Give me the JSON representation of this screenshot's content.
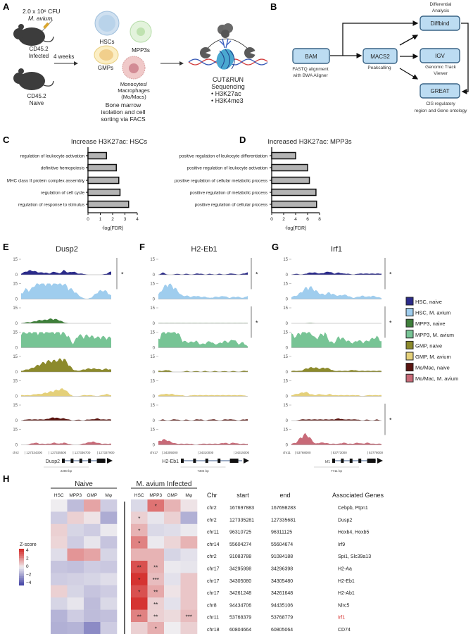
{
  "panel_labels": {
    "a": "A",
    "b": "B",
    "c": "C",
    "d": "D",
    "e": "E",
    "f": "F",
    "g": "G",
    "h": "H"
  },
  "panel_a": {
    "dose": "2.0 x 10⁶ CFU",
    "organism": "M. avium",
    "mouse_infected": [
      "CD45.2",
      "Infected"
    ],
    "mouse_naive": [
      "CD45.2",
      "Naive"
    ],
    "duration": "4 weeks",
    "cells": {
      "hsc": "HSCs",
      "mpp3": "MPP3s",
      "gmp": "GMPs",
      "momac": [
        "Monocytes/",
        "Macrophages",
        "(Mo/Macs)"
      ]
    },
    "isolation": [
      "Bone marrow",
      "isolation and cell",
      "sorting via FACS"
    ],
    "assay": [
      "CUT&RUN",
      "Sequencing",
      "•  H3K27ac",
      "•  H3K4me3"
    ],
    "colors": {
      "mouse": "#3c3c3c",
      "hsc": "#b9d3ea",
      "mpp3": "#cfe8c4",
      "gmp": "#f4dc9a",
      "momac": "#e8b4b4",
      "dna_red": "#d23a3a",
      "dna_blue": "#3457b5",
      "nucleosome": "#4aa8d0"
    }
  },
  "panel_b": {
    "nodes": {
      "bam": "BAM",
      "macs2": "MACS2",
      "diffbind": "Diffbind",
      "igv": "IGV",
      "great": "GREAT"
    },
    "captions": {
      "bam": [
        "FASTQ alignment",
        "with BWA Aligner"
      ],
      "macs2": [
        "Peakcalling"
      ],
      "diffbind": [
        "Differential",
        "Analysis"
      ],
      "igv": [
        "Genomic Track",
        "Viewer"
      ],
      "great": [
        "CIS regulatory",
        "region and Gene ontology"
      ]
    },
    "colors": {
      "box_fill": "#bcdcf2",
      "box_stroke": "#3a6486"
    }
  },
  "chart_data": [
    {
      "type": "bar",
      "orientation": "horizontal",
      "title": "Increase H3K27ac: HSCs",
      "categories": [
        "regulation of leukocyte activation",
        "definitive hemopoiesis",
        "MHC class II protein complex assembly",
        "regulation of cell cycle",
        "regulation of response to stimulus"
      ],
      "values": [
        1.5,
        2.3,
        2.5,
        2.6,
        3.3
      ],
      "xlabel": "-log(FDR)",
      "xlim": [
        0,
        4
      ],
      "xticks": [
        0,
        1,
        2,
        3,
        4
      ],
      "bar_color": "#b4b4b4"
    },
    {
      "type": "bar",
      "orientation": "horizontal",
      "title": "Increased H3K27ac: MPP3s",
      "categories": [
        "positive regulation of leukocyte differentiation",
        "positive regulation of leukocyte activation",
        "positive regulation of cellular metabolic process",
        "positive regulation of metabolic process",
        "positive regulation of cellular process"
      ],
      "values": [
        4.0,
        6.0,
        6.3,
        7.4,
        7.5
      ],
      "xlabel": "-log(FDR)",
      "xlim": [
        0,
        8
      ],
      "xticks": [
        0,
        2,
        4,
        6,
        8
      ],
      "bar_color": "#b4b4b4"
    },
    {
      "type": "area",
      "ylim": [
        0,
        15
      ],
      "yticks": [
        "15",
        "0"
      ],
      "legend_placement": "right",
      "tracks": [
        {
          "name": "HSC, naive",
          "color": "#2b2b8a"
        },
        {
          "name": "HSC, M. avium",
          "color": "#9fcdee"
        },
        {
          "name": "MPP3, naive",
          "color": "#3f7f3b"
        },
        {
          "name": "MPP3, M. avium",
          "color": "#77c495"
        },
        {
          "name": "GMP, naive",
          "color": "#8c8a2c"
        },
        {
          "name": "GMP, M. avium",
          "color": "#e4d07a"
        },
        {
          "name": "Mo/Mac, naive",
          "color": "#5a1410"
        },
        {
          "name": "Mo/Mac, M. avium",
          "color": "#c86a78"
        }
      ],
      "genes": [
        {
          "title": "Dusp2",
          "chr": "chr2",
          "gene_label": "Dusp2",
          "scale": "2280 bp",
          "coords": [
            "| 127334300",
            "| 127335500",
            "| 127336700",
            "| 127337900"
          ],
          "significant": [
            [
              0,
              1
            ]
          ],
          "sig_mark": "*",
          "signal": [
            [
              1,
              3,
              4,
              3,
              2,
              2,
              1,
              3,
              1,
              4,
              2,
              3,
              1,
              1,
              0,
              0,
              0,
              0,
              1,
              3
            ],
            [
              5,
              9,
              8,
              14,
              15,
              15,
              15,
              15,
              15,
              14,
              10,
              8,
              4,
              1,
              0,
              2,
              6,
              8,
              7,
              3
            ],
            [
              0,
              1,
              1,
              2,
              3,
              3,
              4,
              4,
              3,
              1,
              0,
              0,
              0,
              0,
              0,
              0,
              0,
              0,
              0,
              0
            ],
            [
              14,
              14,
              15,
              15,
              15,
              15,
              15,
              15,
              15,
              14,
              10,
              3,
              12,
              10,
              11,
              10,
              9,
              10,
              9,
              9
            ],
            [
              1,
              2,
              3,
              5,
              7,
              9,
              10,
              10,
              11,
              12,
              7,
              2,
              1,
              2,
              3,
              3,
              3,
              2,
              3,
              2
            ],
            [
              1,
              1,
              1,
              2,
              2,
              3,
              4,
              5,
              6,
              7,
              3,
              0,
              0,
              1,
              1,
              1,
              0,
              1,
              2,
              1
            ],
            [
              0,
              1,
              1,
              1,
              1,
              1,
              2,
              3,
              2,
              2,
              1,
              0,
              1,
              0,
              1,
              1,
              2,
              1,
              1,
              1
            ],
            [
              0,
              0,
              1,
              2,
              1,
              1,
              1,
              2,
              1,
              2,
              1,
              0,
              0,
              1,
              2,
              3,
              2,
              1,
              1,
              1
            ]
          ]
        },
        {
          "title": "H2-Eb1",
          "chr": "chr17",
          "gene_label": "H2-Eb1",
          "scale": "7304 bp",
          "coords": [
            "| 34305000",
            "| 34310000",
            "| 34315000"
          ],
          "significant": [
            [
              0,
              1
            ],
            [
              2,
              3
            ]
          ],
          "sig_mark": "*",
          "signal": [
            [
              0,
              2,
              0,
              0,
              1,
              0,
              1,
              0,
              1,
              1,
              0,
              1,
              0,
              1,
              0,
              1,
              1,
              0,
              1,
              2
            ],
            [
              4,
              10,
              14,
              12,
              8,
              3,
              3,
              2,
              3,
              2,
              2,
              1,
              2,
              2,
              3,
              1,
              2,
              2,
              1,
              3
            ],
            [
              0.3,
              0.3,
              0.3,
              0.3,
              0.3,
              0.3,
              0.3,
              0.3,
              0.3,
              0.3,
              0.3,
              0.3,
              0.3,
              0.3,
              0.3,
              0.3,
              0.3,
              0.3,
              0.3,
              0.3
            ],
            [
              8,
              15,
              15,
              15,
              15,
              7,
              5,
              5,
              6,
              3,
              4,
              6,
              3,
              4,
              6,
              5,
              8,
              3,
              5,
              1
            ],
            [
              1,
              1,
              2,
              0,
              0,
              0,
              1,
              0,
              1,
              0,
              1,
              0,
              1,
              0,
              1,
              0,
              1,
              0,
              1,
              1
            ],
            [
              1,
              2,
              2,
              2,
              1,
              1,
              0,
              1,
              1,
              1,
              1,
              1,
              1,
              1,
              1,
              1,
              1,
              1,
              1,
              0
            ],
            [
              0,
              1,
              0,
              1,
              1,
              0,
              1,
              0,
              1,
              1,
              0,
              1,
              1,
              0,
              1,
              1,
              1,
              0,
              1,
              1
            ],
            [
              3,
              5,
              4,
              2,
              1,
              1,
              1,
              1,
              0,
              1,
              1,
              1,
              1,
              1,
              2,
              1,
              2,
              1,
              1,
              1
            ]
          ]
        },
        {
          "title": "Irf1",
          "chr": "chr11",
          "gene_label": "Irf1",
          "scale": "7711 bp",
          "coords": [
            "| 53768000",
            "| 53773000",
            "| 53778000"
          ],
          "significant": [
            [
              0,
              1
            ],
            [
              2,
              3
            ],
            [
              6,
              7
            ]
          ],
          "sig_mark": "*",
          "signal": [
            [
              0,
              1,
              0,
              1,
              2,
              2,
              1,
              2,
              3,
              1,
              2,
              1,
              1,
              0,
              1,
              1,
              1,
              1,
              1,
              1
            ],
            [
              2,
              3,
              6,
              10,
              11,
              8,
              5,
              4,
              6,
              4,
              3,
              4,
              3,
              1,
              2,
              3,
              2,
              3,
              2,
              1
            ],
            [
              0,
              0,
              0,
              0,
              0.5,
              0,
              0,
              0,
              0,
              0,
              0,
              0,
              0,
              0,
              0,
              0,
              0,
              0,
              0,
              0
            ],
            [
              12,
              10,
              15,
              15,
              15,
              8,
              11,
              14,
              6,
              4,
              10,
              8,
              6,
              4,
              7,
              5,
              6,
              8,
              10,
              6
            ],
            [
              1,
              1,
              1,
              3,
              4,
              4,
              3,
              4,
              3,
              1,
              1,
              1,
              1,
              2,
              1,
              1,
              1,
              1,
              1,
              1
            ],
            [
              1,
              2,
              3,
              4,
              2,
              1,
              2,
              1,
              2,
              1,
              1,
              1,
              1,
              1,
              1,
              0,
              1,
              1,
              1,
              1
            ],
            [
              0,
              0,
              1,
              1,
              1,
              1,
              1,
              1,
              1,
              1,
              2,
              1,
              1,
              1,
              1,
              0,
              1,
              0,
              1,
              0
            ],
            [
              1,
              2,
              7,
              10,
              6,
              1,
              2,
              2,
              1,
              1,
              1,
              2,
              1,
              1,
              2,
              1,
              2,
              1,
              1,
              1
            ]
          ]
        }
      ]
    },
    {
      "type": "heatmap",
      "groups": [
        "Naive",
        "M. avium Infected"
      ],
      "columns": [
        "HSC",
        "MPP3",
        "GMP",
        "Mφ"
      ],
      "colorbar": {
        "label": "Z-score",
        "ticks": [
          "4",
          "2",
          "0",
          "−2",
          "−4"
        ],
        "range": [
          -4,
          4
        ],
        "low": "#4a4aa8",
        "mid": "#efedf0",
        "high": "#d42a28"
      },
      "naive": [
        [
          0,
          -1.2,
          1.5,
          -0.8
        ],
        [
          -0.8,
          0.6,
          0.2,
          -1.6
        ],
        [
          0.6,
          -0.6,
          -0.8,
          -0.1
        ],
        [
          0.5,
          -0.8,
          -0.2,
          -1.0
        ],
        [
          -0.4,
          1.8,
          1.5,
          -0.6
        ],
        [
          -1.0,
          -1.1,
          -0.8,
          -0.9
        ],
        [
          -0.8,
          -0.7,
          -0.6,
          -0.4
        ],
        [
          0.6,
          -0.6,
          -1.0,
          -0.8
        ],
        [
          -0.6,
          -0.2,
          -1.2,
          -0.5
        ],
        [
          -1.4,
          -0.8,
          -1.2,
          -1.1
        ],
        [
          -1.5,
          -1.4,
          -2.4,
          -0.8
        ]
      ],
      "infected": [
        [
          -0.5,
          2.5,
          1.2,
          0.2
        ],
        [
          0.6,
          -0.2,
          0.6,
          -1.5
        ],
        [
          1.2,
          -0.5,
          -0.4,
          -0.1
        ],
        [
          2.2,
          -0.1,
          0.5,
          1.2
        ],
        [
          1.2,
          1.2,
          -0.6,
          -0.3
        ],
        [
          3.2,
          1.2,
          -0.1,
          -0.2
        ],
        [
          3.8,
          1.0,
          -0.3,
          0.8
        ],
        [
          3.2,
          1.4,
          0.2,
          0.8
        ],
        [
          3.8,
          0.6,
          -0.3,
          0.8
        ],
        [
          2.2,
          0.6,
          0.4,
          1.0
        ],
        [
          0.6,
          1.3,
          0.0,
          0.6
        ]
      ],
      "infected_stars": [
        [
          "",
          "*",
          "",
          ""
        ],
        [
          "*",
          "",
          "",
          ""
        ],
        [
          "*",
          "",
          "",
          ""
        ],
        [
          "*",
          "",
          "",
          ""
        ],
        [
          "",
          "",
          "",
          ""
        ],
        [
          "**",
          "**",
          "",
          ""
        ],
        [
          "*",
          "***",
          "",
          ""
        ],
        [
          "*",
          "**",
          "",
          ""
        ],
        [
          "",
          "**",
          "",
          ""
        ],
        [
          "**",
          "**",
          "",
          "***"
        ],
        [
          "",
          "*",
          "",
          ""
        ]
      ]
    }
  ],
  "region_table": {
    "headers": [
      "Chr",
      "start",
      "end",
      "Associated Genes"
    ],
    "highlight_color": "#d42a28",
    "rows": [
      {
        "chr": "chr2",
        "start": "167697883",
        "end": "167698283",
        "genes": "Cebpb, Ptpn1"
      },
      {
        "chr": "chr2",
        "start": "127335281",
        "end": "127335681",
        "genes": "Dusp2"
      },
      {
        "chr": "chr11",
        "start": "96310725",
        "end": "96311125",
        "genes": "Hoxb4, Hoxb5"
      },
      {
        "chr": "chr14",
        "start": "55604274",
        "end": "55604674",
        "genes": "Irf9"
      },
      {
        "chr": "chr2",
        "start": "91083788",
        "end": "91084188",
        "genes": "Spi1, Slc39a13"
      },
      {
        "chr": "chr17",
        "start": "34295998",
        "end": "34296398",
        "genes": "H2-Aa"
      },
      {
        "chr": "chr17",
        "start": "34305080",
        "end": "34305480",
        "genes": "H2-Eb1"
      },
      {
        "chr": "chr17",
        "start": "34261248",
        "end": "34261648",
        "genes": "H2-Ab1"
      },
      {
        "chr": "chr8",
        "start": "94434706",
        "end": "94435106",
        "genes": "Nlrc5"
      },
      {
        "chr": "chr11",
        "start": "53768379",
        "end": "53768779",
        "genes": "Irf1",
        "highlight": true
      },
      {
        "chr": "chr18",
        "start": "60804664",
        "end": "60805064",
        "genes": "CD74"
      }
    ]
  }
}
